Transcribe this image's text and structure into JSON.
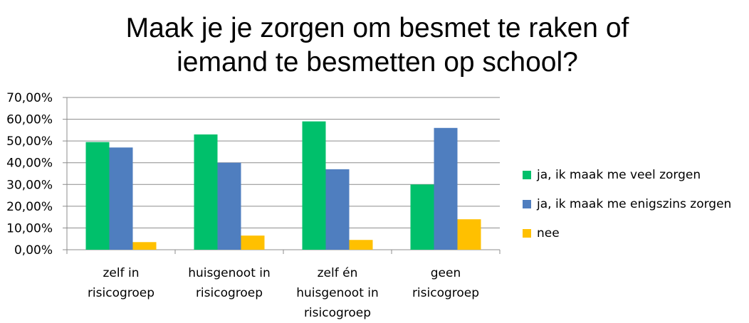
{
  "chart_data": {
    "type": "bar",
    "title_lines": [
      "Maak je je zorgen om besmet te raken of",
      "iemand te besmetten op school?"
    ],
    "categories": [
      [
        "zelf in",
        "risicogroep"
      ],
      [
        "huisgenoot in",
        "risicogroep"
      ],
      [
        "zelf én",
        "huisgenoot in",
        "risicogroep"
      ],
      [
        "geen",
        "risicogroep"
      ]
    ],
    "series": [
      {
        "name": "ja, ik maak me veel zorgen",
        "color": "#00C06B",
        "values": [
          49.5,
          53.0,
          59.0,
          30.0
        ]
      },
      {
        "name": "ja, ik maak me enigszins zorgen",
        "color": "#4F7EBF",
        "values": [
          47.0,
          40.0,
          37.0,
          56.0
        ]
      },
      {
        "name": "nee",
        "color": "#FFC000",
        "values": [
          3.5,
          6.5,
          4.5,
          14.0
        ]
      }
    ],
    "ylim": [
      0,
      70
    ],
    "yticks": [
      "0,00%",
      "10,00%",
      "20,00%",
      "30,00%",
      "40,00%",
      "50,00%",
      "60,00%",
      "70,00%"
    ],
    "grid": true,
    "legend_position": "right"
  }
}
